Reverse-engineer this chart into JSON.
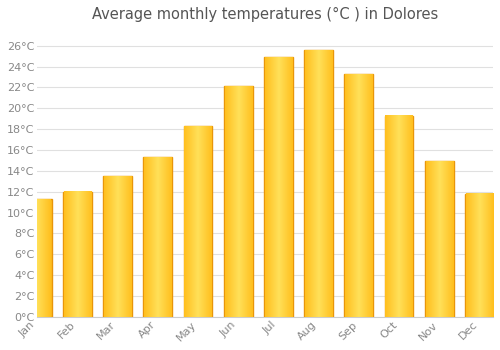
{
  "title": "Average monthly temperatures (°C ) in Dolores",
  "months": [
    "Jan",
    "Feb",
    "Mar",
    "Apr",
    "May",
    "Jun",
    "Jul",
    "Aug",
    "Sep",
    "Oct",
    "Nov",
    "Dec"
  ],
  "values": [
    11.3,
    12.0,
    13.5,
    15.3,
    18.3,
    22.1,
    24.9,
    25.6,
    23.3,
    19.3,
    14.9,
    11.8
  ],
  "bar_color_face": "#FFC020",
  "bar_color_edge": "#E8960A",
  "background_color": "#FFFFFF",
  "plot_bg_color": "#FFFFFF",
  "grid_color": "#E0E0E0",
  "ytick_labels": [
    "0°C",
    "2°C",
    "4°C",
    "6°C",
    "8°C",
    "10°C",
    "12°C",
    "14°C",
    "16°C",
    "18°C",
    "20°C",
    "22°C",
    "24°C",
    "26°C"
  ],
  "ytick_values": [
    0,
    2,
    4,
    6,
    8,
    10,
    12,
    14,
    16,
    18,
    20,
    22,
    24,
    26
  ],
  "ylim": [
    0,
    27.5
  ],
  "title_fontsize": 10.5,
  "tick_fontsize": 8,
  "title_color": "#555555",
  "tick_color": "#888888",
  "figsize": [
    5.0,
    3.5
  ],
  "dpi": 100,
  "bar_width": 0.72
}
